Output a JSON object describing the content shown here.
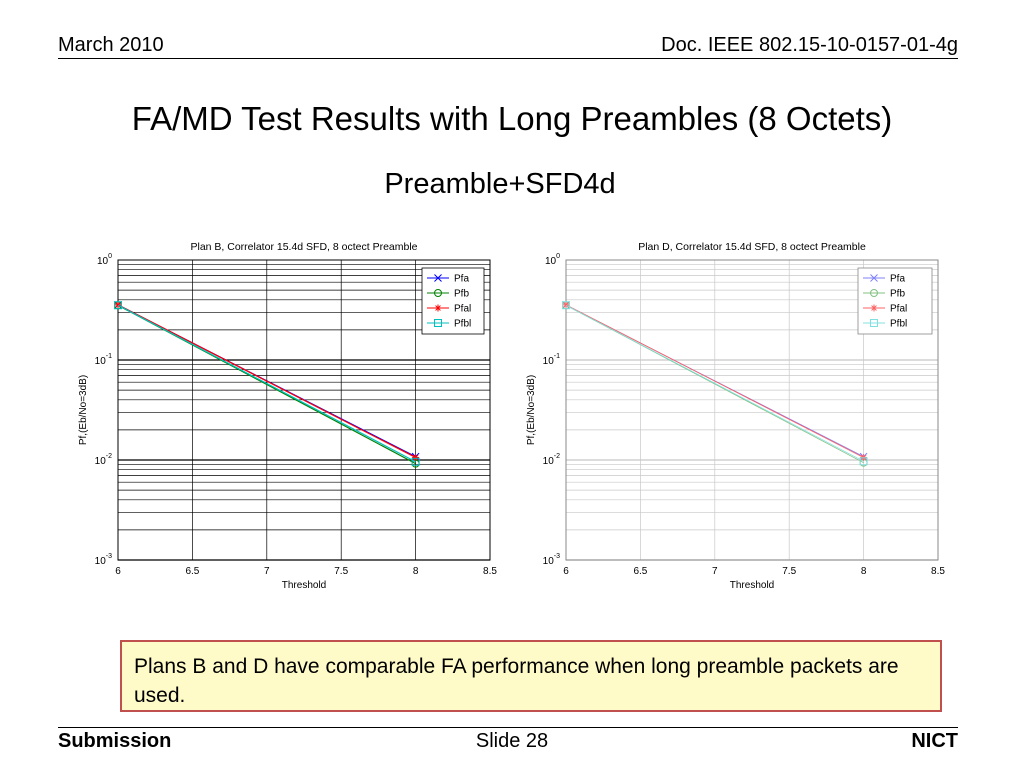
{
  "header": {
    "date": "March 2010",
    "doc": "Doc. IEEE 802.15-10-0157-01-4g"
  },
  "title": "FA/MD Test Results with Long Preambles (8 Octets)",
  "subtitle": "Preamble+SFD4d",
  "note": "Plans B and D have comparable FA performance  when long preamble packets are used.",
  "footer": {
    "left": "Submission",
    "center": "Slide 28",
    "right": "NICT"
  },
  "chart_data": [
    {
      "id": "chart-b",
      "type": "line",
      "title": "Plan B, Correlator 15.4d SFD, 8 octect Preamble",
      "xlabel": "Threshold",
      "ylabel": "Pf,(Eb/No=3dB)",
      "xlim": [
        6,
        8.5
      ],
      "ylim": [
        0.001,
        1
      ],
      "yscale": "log",
      "xticks": [
        "6",
        "6.5",
        "7",
        "7.5",
        "8",
        "8.5"
      ],
      "yticks": [
        {
          "base": "10",
          "exp": "0"
        },
        {
          "base": "10",
          "exp": "-1"
        },
        {
          "base": "10",
          "exp": "-2"
        },
        {
          "base": "10",
          "exp": "-3"
        }
      ],
      "grid": true,
      "legend_position": "top-right",
      "series": [
        {
          "name": "Pfa",
          "color": "#0000ff",
          "marker": "x",
          "x": [
            6,
            8
          ],
          "y": [
            0.355,
            0.0108
          ]
        },
        {
          "name": "Pfb",
          "color": "#008000",
          "marker": "o",
          "x": [
            6,
            8
          ],
          "y": [
            0.352,
            0.0092
          ]
        },
        {
          "name": "Pfal",
          "color": "#ff0000",
          "marker": "*",
          "x": [
            6,
            8
          ],
          "y": [
            0.356,
            0.0106
          ]
        },
        {
          "name": "Pfbl",
          "color": "#00bfbf",
          "marker": "s",
          "x": [
            6,
            8
          ],
          "y": [
            0.353,
            0.0096
          ]
        }
      ]
    },
    {
      "id": "chart-d",
      "type": "line",
      "title": "Plan D, Correlator 15.4d SFD, 8 octect Preamble",
      "xlabel": "Threshold",
      "ylabel": "Pf,(Eb/No=3dB)",
      "xlim": [
        6,
        8.5
      ],
      "ylim": [
        0.001,
        1
      ],
      "yscale": "log",
      "xticks": [
        "6",
        "6.5",
        "7",
        "7.5",
        "8",
        "8.5"
      ],
      "yticks": [
        {
          "base": "10",
          "exp": "0"
        },
        {
          "base": "10",
          "exp": "-1"
        },
        {
          "base": "10",
          "exp": "-2"
        },
        {
          "base": "10",
          "exp": "-3"
        }
      ],
      "grid": true,
      "legend_position": "top-right",
      "faded": true,
      "series": [
        {
          "name": "Pfa",
          "color": "#8080ff",
          "marker": "x",
          "x": [
            6,
            8
          ],
          "y": [
            0.355,
            0.0108
          ]
        },
        {
          "name": "Pfb",
          "color": "#80c080",
          "marker": "o",
          "x": [
            6,
            8
          ],
          "y": [
            0.352,
            0.0094
          ]
        },
        {
          "name": "Pfal",
          "color": "#ff6060",
          "marker": "*",
          "x": [
            6,
            8
          ],
          "y": [
            0.356,
            0.0106
          ]
        },
        {
          "name": "Pfbl",
          "color": "#80e0e0",
          "marker": "s",
          "x": [
            6,
            8
          ],
          "y": [
            0.353,
            0.0097
          ]
        }
      ]
    }
  ]
}
